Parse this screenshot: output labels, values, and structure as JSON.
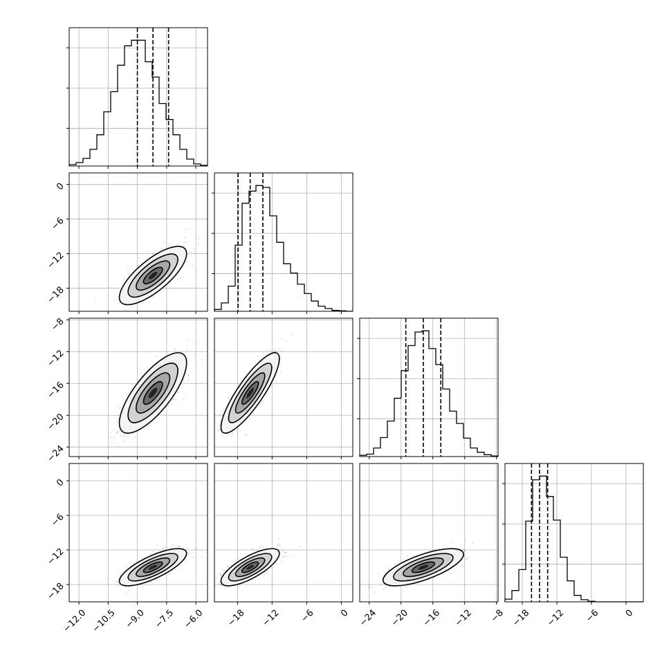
{
  "chart_data": {
    "type": "corner",
    "grid": true,
    "parameters": [
      {
        "index": 0,
        "range": [
          -12.5,
          -5.4
        ],
        "ticks": [
          -12.0,
          -10.5,
          -9.0,
          -7.5,
          -6.0
        ],
        "tick_labels": [
          "−12.0",
          "−10.5",
          "−9.0",
          "−7.5",
          "−6.0"
        ],
        "mean": -8.2,
        "sigma": 0.75,
        "quantiles": [
          -9.0,
          -8.2,
          -7.4
        ]
      },
      {
        "index": 1,
        "range": [
          -22,
          2
        ],
        "ticks": [
          -18,
          -12,
          -6,
          0
        ],
        "tick_labels": [
          "−18",
          "−12",
          "−6",
          "0"
        ],
        "mean": -15.8,
        "sigma": 2.2,
        "quantiles": [
          -17.9,
          -15.8,
          -13.6
        ]
      },
      {
        "index": 2,
        "range": [
          -25.2,
          -7.8
        ],
        "ticks": [
          -24,
          -20,
          -16,
          -12,
          -8
        ],
        "tick_labels": [
          "−24",
          "−20",
          "−16",
          "−12",
          "−8"
        ],
        "mean": -17.2,
        "sigma": 2.2,
        "quantiles": [
          -19.4,
          -17.2,
          -15.0
        ]
      },
      {
        "index": 3,
        "range": [
          -21,
          3
        ],
        "ticks": [
          -18,
          -12,
          -6,
          0
        ],
        "tick_labels": [
          "−18",
          "−12",
          "−6",
          "0"
        ],
        "mean": -15.0,
        "sigma": 1.4,
        "quantiles": [
          -16.4,
          -15.0,
          -13.6
        ]
      }
    ],
    "correlations": [
      [
        1,
        0.75,
        0.75,
        0.75
      ],
      [
        0.75,
        1,
        0.85,
        0.75
      ],
      [
        0.75,
        0.85,
        1,
        0.7
      ],
      [
        0.75,
        0.75,
        0.7,
        1
      ]
    ],
    "histogram_bins": 20,
    "histogram_counts": [
      [
        2,
        5,
        11,
        24,
        45,
        78,
        107,
        145,
        173,
        181,
        181,
        150,
        128,
        90,
        67,
        45,
        24,
        10,
        3,
        1
      ],
      [
        4,
        18,
        54,
        142,
        232,
        258,
        270,
        266,
        205,
        148,
        102,
        82,
        58,
        38,
        22,
        11,
        6,
        2,
        1,
        0
      ],
      [
        2,
        4,
        14,
        31,
        58,
        95,
        140,
        181,
        203,
        205,
        176,
        150,
        110,
        74,
        54,
        30,
        14,
        7,
        3,
        1
      ],
      [
        5,
        21,
        60,
        150,
        227,
        234,
        196,
        152,
        83,
        39,
        12,
        4,
        1,
        0,
        0,
        0,
        0,
        0,
        0,
        0
      ]
    ]
  }
}
